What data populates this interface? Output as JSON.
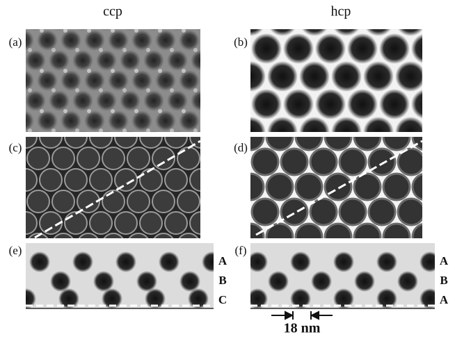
{
  "header": {
    "left": "ccp",
    "right": "hcp"
  },
  "panels": [
    {
      "label": "(a)"
    },
    {
      "label": "(b)"
    },
    {
      "label": "(c)"
    },
    {
      "label": "(d)"
    },
    {
      "label": "(e)",
      "layers": [
        "A",
        "B",
        "C"
      ]
    },
    {
      "label": "(f)",
      "layers": [
        "A",
        "B",
        "A"
      ]
    }
  ],
  "scale_bar": "18 nm"
}
